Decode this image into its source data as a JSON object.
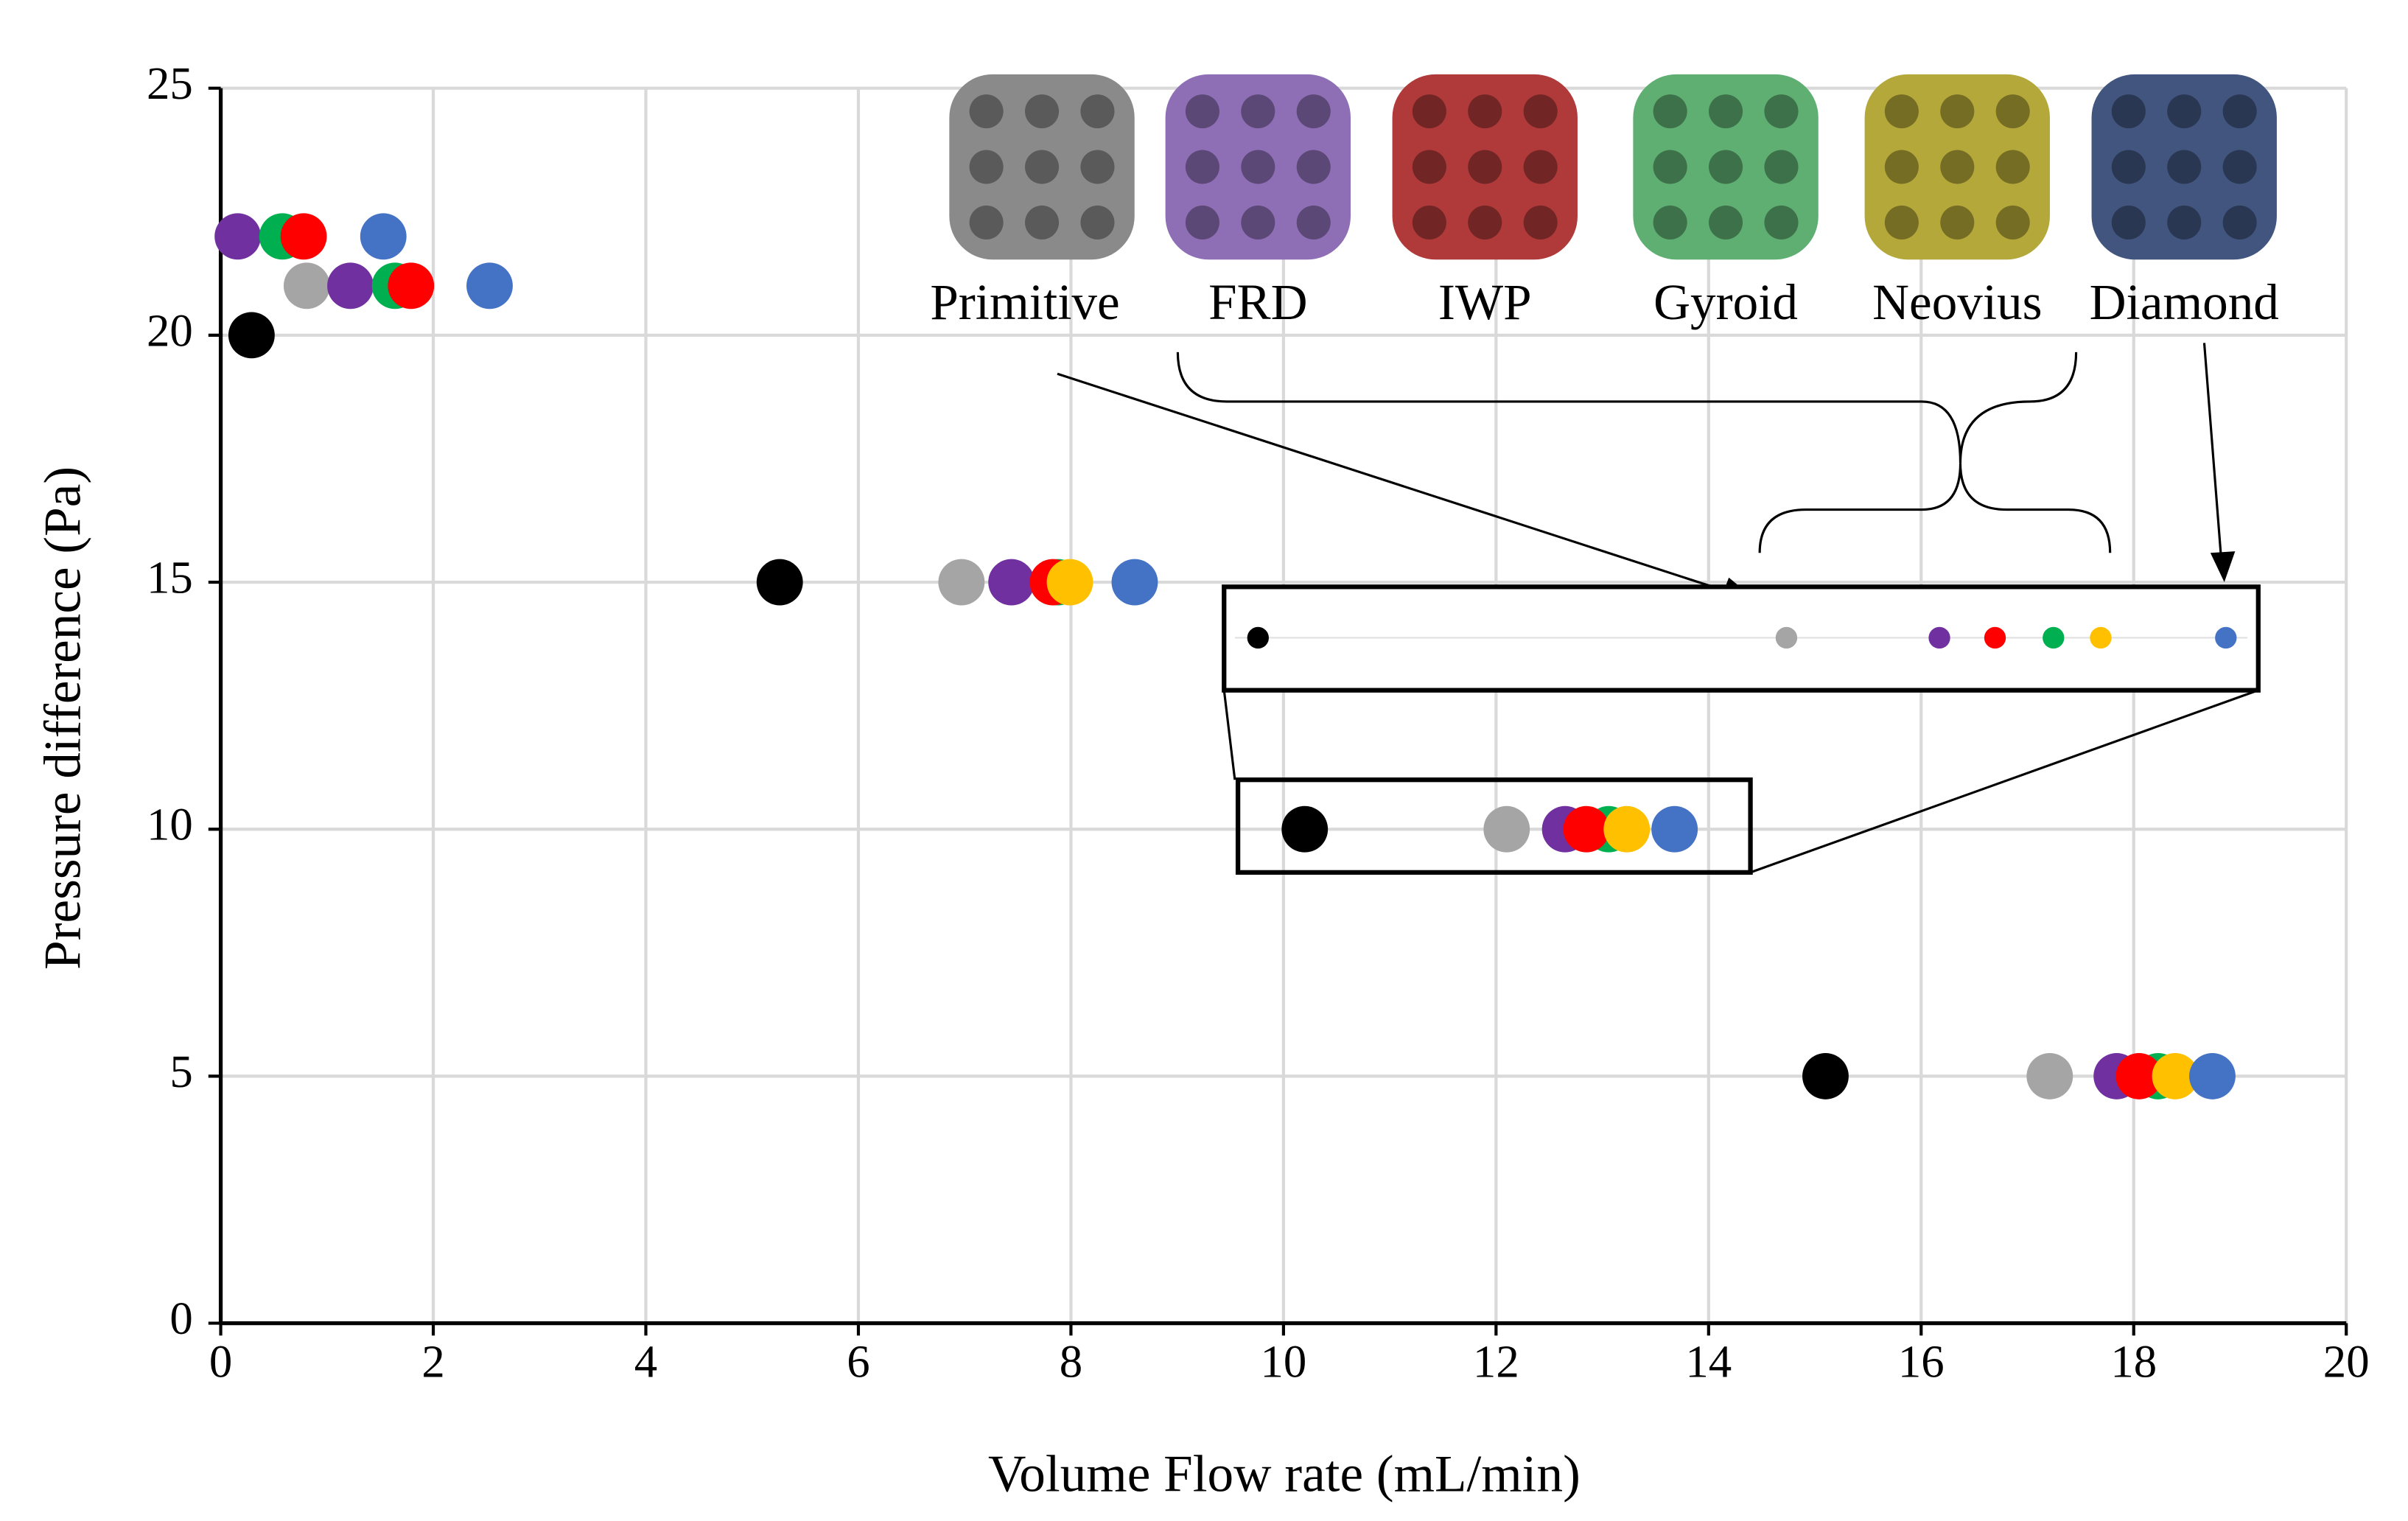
{
  "chart_data": {
    "type": "scatter",
    "x_label": "Volume Flow rate (mL/min)",
    "y_label": "Pressure difference (Pa)",
    "xlim": [
      0,
      20
    ],
    "ylim": [
      0,
      25
    ],
    "xticks": [
      0,
      2,
      4,
      6,
      8,
      10,
      12,
      14,
      16,
      18,
      20
    ],
    "yticks": [
      0,
      5,
      10,
      15,
      20,
      25
    ],
    "grid": true,
    "series": [
      {
        "color": "#000000",
        "x": [
          0.29,
          5.26,
          10.2,
          15.1
        ],
        "y": [
          20,
          15,
          10,
          5
        ]
      },
      {
        "name": "Primitive",
        "color": "#a5a5a5",
        "x": [
          0.81,
          6.97,
          12.1,
          17.21
        ],
        "y": [
          21,
          15,
          10,
          5
        ]
      },
      {
        "name": "FRD",
        "color": "#7030a0",
        "x": [
          0.16,
          1.22,
          7.44,
          12.65,
          17.84
        ],
        "y": [
          22,
          21,
          15,
          10,
          5
        ]
      },
      {
        "name": "Gyroid",
        "color": "#00b050",
        "x": [
          0.58,
          1.64,
          7.88,
          13.06,
          18.23
        ],
        "y": [
          22,
          21,
          15,
          10,
          5
        ]
      },
      {
        "name": "IWP",
        "color": "#ff0000",
        "x": [
          0.78,
          1.79,
          7.83,
          12.85,
          18.05
        ],
        "y": [
          22,
          21,
          15,
          10,
          5
        ]
      },
      {
        "name": "Neovius",
        "color": "#ffc000",
        "x": [
          7.99,
          13.23,
          18.39
        ],
        "y": [
          15,
          10,
          5
        ]
      },
      {
        "name": "Diamond",
        "color": "#4472c4",
        "x": [
          1.53,
          2.53,
          8.6,
          13.68,
          18.74
        ],
        "y": [
          22,
          21,
          15,
          10,
          5
        ]
      }
    ]
  }
}
